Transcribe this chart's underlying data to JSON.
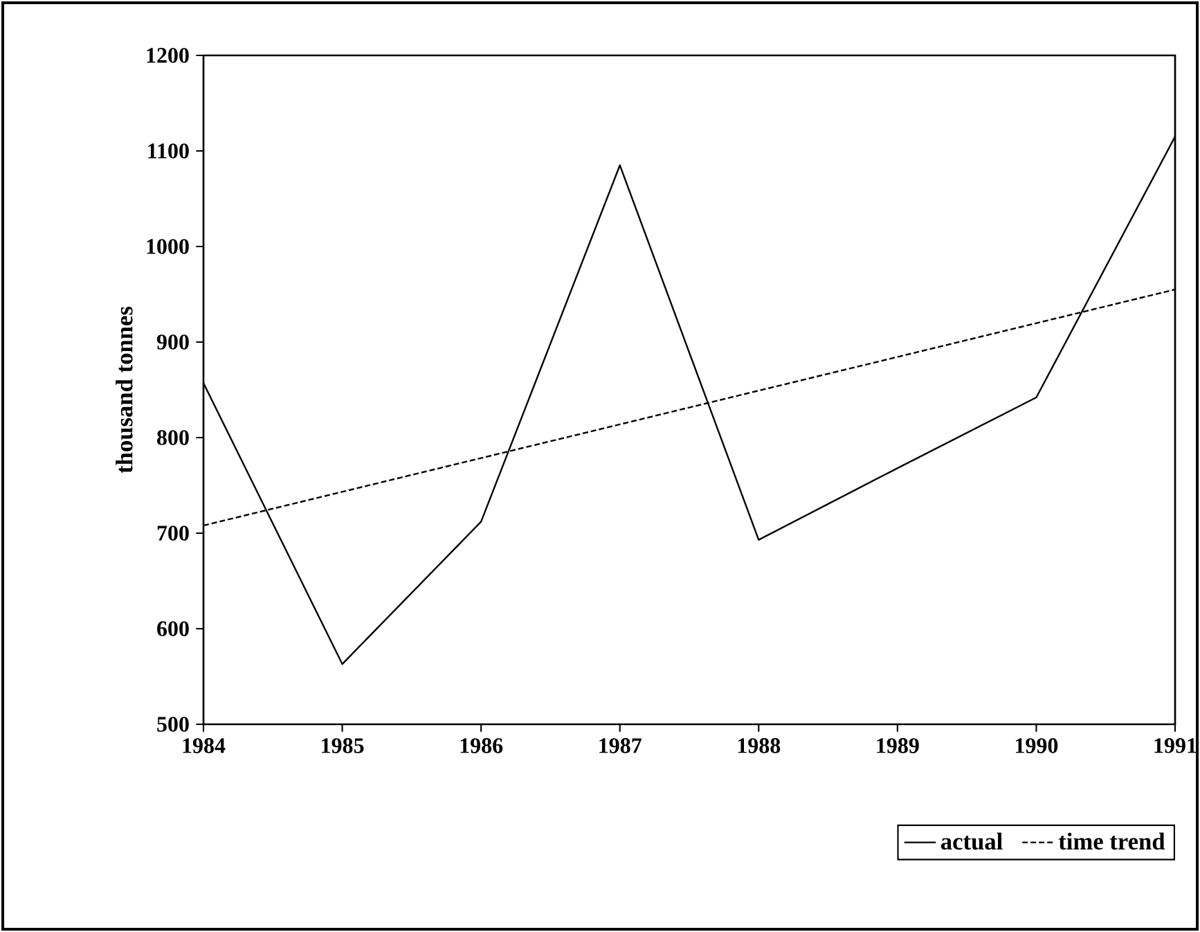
{
  "chart_data": {
    "type": "line",
    "ylabel": "thousand tonnes",
    "xlim": [
      1984,
      1991
    ],
    "xticks": [
      1984,
      1985,
      1986,
      1987,
      1988,
      1989,
      1990,
      1991
    ],
    "ylim": [
      500,
      1200
    ],
    "yticks": [
      500,
      600,
      700,
      800,
      900,
      1000,
      1100,
      1200
    ],
    "legend": "bottom right",
    "series": [
      {
        "name": "actual",
        "color": "#000000",
        "line_style": "solid",
        "x": [
          1984,
          1985,
          1986,
          1987,
          1988,
          1989,
          1990,
          1991
        ],
        "values": [
          857,
          563,
          712,
          1085,
          693,
          768,
          842,
          1115
        ]
      },
      {
        "name": "time trend",
        "color": "#000000",
        "line_style": "dashed",
        "x": [
          1984,
          1991
        ],
        "values": [
          708,
          955
        ]
      }
    ]
  }
}
